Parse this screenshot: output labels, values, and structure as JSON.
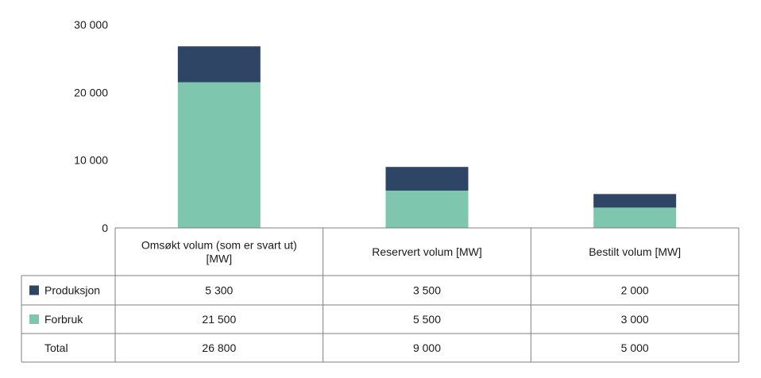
{
  "chart_data": {
    "type": "bar",
    "stacked": true,
    "categories": [
      "Omsøkt volum (som er svart ut) [MW]",
      "Reservert volum [MW]",
      "Bestilt volum [MW]"
    ],
    "category_lines": [
      [
        "Omsøkt volum (som er svart ut)",
        "[MW]"
      ],
      [
        "Reservert volum [MW]"
      ],
      [
        "Bestilt volum [MW]"
      ]
    ],
    "series": [
      {
        "name": "Forbruk",
        "values": [
          21500,
          5500,
          3000
        ],
        "color": "#7fc6ae"
      },
      {
        "name": "Produksjon",
        "values": [
          5300,
          3500,
          2000
        ],
        "color": "#2e4565"
      }
    ],
    "table_rows": [
      {
        "label": "Produksjon",
        "swatch": "#2e4565",
        "values": [
          "5 300",
          "3 500",
          "2 000"
        ]
      },
      {
        "label": "Forbruk",
        "swatch": "#7fc6ae",
        "values": [
          "21 500",
          "5 500",
          "3 000"
        ]
      },
      {
        "label": "Total",
        "swatch": null,
        "values": [
          "26 800",
          "9 000",
          "5 000"
        ]
      }
    ],
    "yticks": [
      {
        "value": 0,
        "label": "0"
      },
      {
        "value": 10000,
        "label": "10 000"
      },
      {
        "value": 20000,
        "label": "20 000"
      },
      {
        "value": 30000,
        "label": "30 000"
      }
    ],
    "ylim": [
      0,
      30000
    ],
    "grid": false,
    "legend": "data-table"
  }
}
